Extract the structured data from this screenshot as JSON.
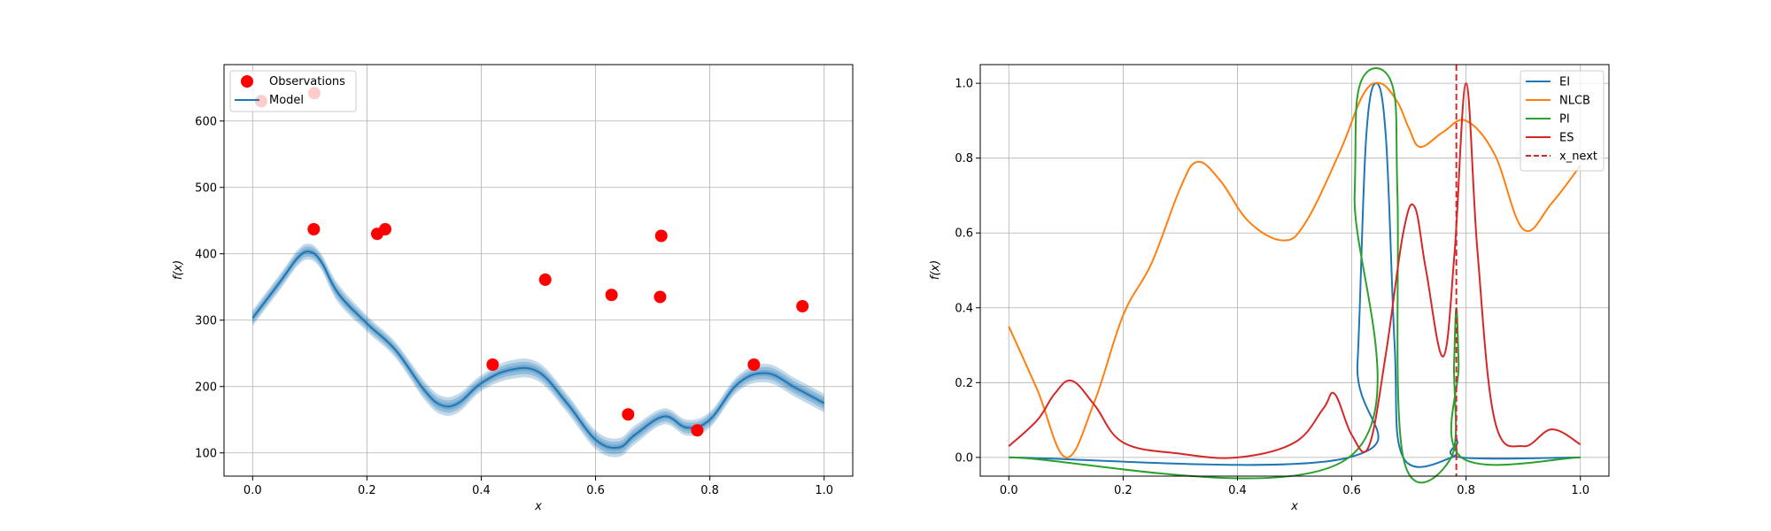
{
  "chart_data": [
    {
      "type": "scatter",
      "title": "",
      "xlabel": "x",
      "ylabel": "f(x)",
      "xlim": [
        -0.05,
        1.05
      ],
      "ylim": [
        65,
        685
      ],
      "xticks": [
        0.0,
        0.2,
        0.4,
        0.6,
        0.8,
        1.0
      ],
      "yticks": [
        100,
        200,
        300,
        400,
        500,
        600
      ],
      "grid": true,
      "legend_position": "top-left",
      "legend": [
        {
          "label": "Observations",
          "color": "#ff0000",
          "kind": "marker"
        },
        {
          "label": "Model",
          "color": "#1f77b4",
          "kind": "line"
        }
      ],
      "observations": {
        "name": "Observations",
        "color": "#ff0000",
        "points": [
          {
            "x": 0.015,
            "y": 630
          },
          {
            "x": 0.108,
            "y": 642
          },
          {
            "x": 0.107,
            "y": 437
          },
          {
            "x": 0.218,
            "y": 430
          },
          {
            "x": 0.232,
            "y": 437
          },
          {
            "x": 0.42,
            "y": 233
          },
          {
            "x": 0.512,
            "y": 361
          },
          {
            "x": 0.628,
            "y": 338
          },
          {
            "x": 0.657,
            "y": 158
          },
          {
            "x": 0.713,
            "y": 335
          },
          {
            "x": 0.715,
            "y": 427
          },
          {
            "x": 0.778,
            "y": 134
          },
          {
            "x": 0.877,
            "y": 233
          },
          {
            "x": 0.962,
            "y": 321
          }
        ]
      },
      "model": {
        "name": "Model",
        "color": "#1f77b4",
        "band_color": "#aec7e8",
        "x": [
          0.0,
          0.05,
          0.08,
          0.1,
          0.12,
          0.15,
          0.2,
          0.25,
          0.3,
          0.33,
          0.36,
          0.4,
          0.45,
          0.5,
          0.55,
          0.6,
          0.64,
          0.67,
          0.72,
          0.76,
          0.8,
          0.85,
          0.9,
          0.95,
          1.0
        ],
        "y": [
          303,
          360,
          395,
          403,
          388,
          340,
          295,
          255,
          195,
          172,
          175,
          205,
          225,
          222,
          175,
          120,
          108,
          128,
          155,
          138,
          150,
          205,
          220,
          198,
          175
        ],
        "band": [
          12,
          12,
          12,
          12,
          12,
          14,
          12,
          12,
          14,
          14,
          14,
          12,
          14,
          14,
          14,
          14,
          14,
          14,
          12,
          12,
          12,
          12,
          14,
          14,
          14
        ]
      }
    },
    {
      "type": "line",
      "title": "",
      "xlabel": "x",
      "ylabel": "f(x)",
      "xlim": [
        -0.05,
        1.05
      ],
      "ylim": [
        -0.05,
        1.05
      ],
      "xticks": [
        0.0,
        0.2,
        0.4,
        0.6,
        0.8,
        1.0
      ],
      "yticks": [
        0.0,
        0.2,
        0.4,
        0.6,
        0.8,
        1.0
      ],
      "grid": true,
      "legend_position": "top-right",
      "x_next": 0.783,
      "series": [
        {
          "name": "EI",
          "color": "#1f77b4",
          "x": [
            0.0,
            0.595,
            0.61,
            0.625,
            0.643,
            0.66,
            0.675,
            0.69,
            0.775,
            0.781,
            0.783,
            0.785,
            0.791,
            1.0
          ],
          "y": [
            0.0,
            0.0,
            0.25,
            0.85,
            1.0,
            0.85,
            0.3,
            0.0,
            0.0,
            0.04,
            0.05,
            0.04,
            0.0,
            0.0
          ]
        },
        {
          "name": "NLCB",
          "color": "#ff7f0e",
          "x": [
            0.0,
            0.05,
            0.1,
            0.15,
            0.2,
            0.25,
            0.3,
            0.33,
            0.37,
            0.42,
            0.48,
            0.52,
            0.58,
            0.62,
            0.65,
            0.68,
            0.7,
            0.72,
            0.76,
            0.8,
            0.85,
            0.9,
            0.95,
            1.0
          ],
          "y": [
            0.35,
            0.18,
            0.0,
            0.15,
            0.38,
            0.52,
            0.72,
            0.79,
            0.74,
            0.63,
            0.58,
            0.63,
            0.82,
            0.97,
            1.0,
            0.95,
            0.88,
            0.83,
            0.87,
            0.9,
            0.81,
            0.61,
            0.68,
            0.78
          ]
        },
        {
          "name": "PI",
          "color": "#2ca02c",
          "x": [
            0.0,
            0.595,
            0.605,
            0.615,
            0.67,
            0.68,
            0.69,
            0.774,
            0.779,
            0.783,
            0.787,
            0.792,
            1.0
          ],
          "y": [
            0.0,
            0.0,
            0.7,
            1.0,
            1.0,
            0.7,
            0.0,
            0.0,
            0.25,
            0.4,
            0.25,
            0.0,
            0.0
          ]
        },
        {
          "name": "ES",
          "color": "#d62728",
          "x": [
            0.0,
            0.05,
            0.08,
            0.11,
            0.15,
            0.2,
            0.3,
            0.4,
            0.5,
            0.55,
            0.57,
            0.6,
            0.63,
            0.66,
            0.69,
            0.71,
            0.73,
            0.76,
            0.78,
            0.8,
            0.82,
            0.85,
            0.9,
            0.95,
            1.0
          ],
          "y": [
            0.03,
            0.1,
            0.17,
            0.205,
            0.14,
            0.04,
            0.01,
            0.0,
            0.04,
            0.13,
            0.17,
            0.06,
            0.03,
            0.28,
            0.6,
            0.67,
            0.5,
            0.27,
            0.55,
            1.0,
            0.55,
            0.1,
            0.03,
            0.075,
            0.035
          ]
        }
      ],
      "vline": {
        "name": "x_next",
        "color": "#d62728",
        "x": 0.783
      }
    }
  ]
}
